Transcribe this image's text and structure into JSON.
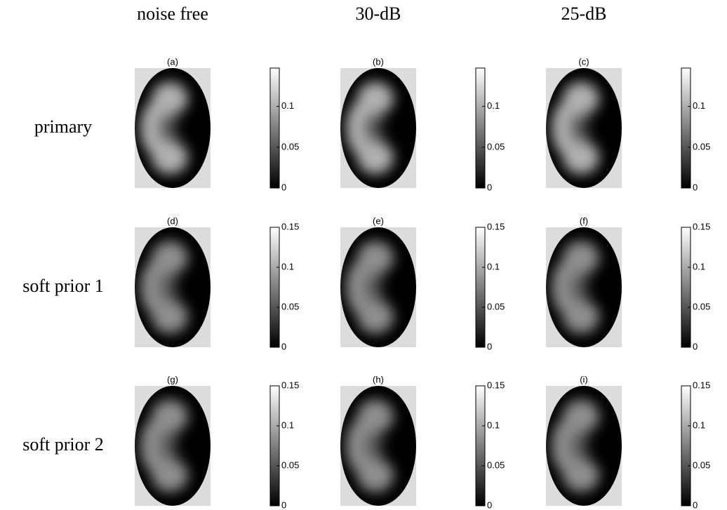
{
  "columns": [
    "noise free",
    "30-dB",
    "25-dB"
  ],
  "rows": [
    {
      "label": "primary",
      "panels": [
        {
          "label": "(a)",
          "ticks": [
            "0",
            "0.05",
            "0.1"
          ]
        },
        {
          "label": "(b)",
          "ticks": [
            "0",
            "0.05",
            "0.1"
          ]
        },
        {
          "label": "(c)",
          "ticks": [
            "0",
            "0.05",
            "0.1"
          ]
        }
      ]
    },
    {
      "label": "soft prior 1",
      "panels": [
        {
          "label": "(d)",
          "ticks": [
            "0",
            "0.05",
            "0.1",
            "0.15"
          ]
        },
        {
          "label": "(e)",
          "ticks": [
            "0",
            "0.05",
            "0.1",
            "0.15"
          ]
        },
        {
          "label": "(f)",
          "ticks": [
            "0",
            "0.05",
            "0.1",
            "0.15"
          ]
        }
      ]
    },
    {
      "label": "soft prior 2",
      "panels": [
        {
          "label": "(g)",
          "ticks": [
            "0",
            "0.05",
            "0.1",
            "0.15"
          ]
        },
        {
          "label": "(h)",
          "ticks": [
            "0",
            "0.05",
            "0.1",
            "0.15"
          ]
        },
        {
          "label": "(i)",
          "ticks": [
            "0",
            "0.05",
            "0.1",
            "0.15"
          ]
        }
      ]
    }
  ]
}
